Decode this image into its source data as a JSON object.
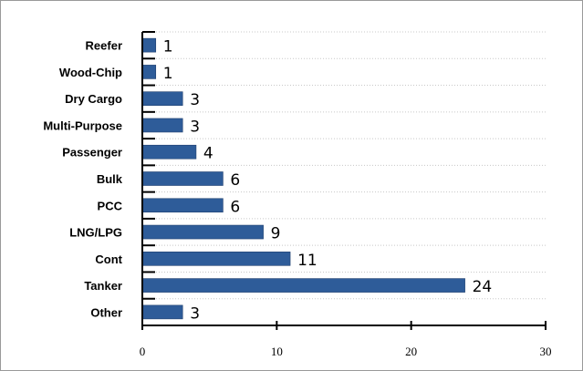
{
  "chart_data": {
    "type": "bar",
    "orientation": "horizontal",
    "categories": [
      "Reefer",
      "Wood-Chip",
      "Dry Cargo",
      "Multi-Purpose",
      "Passenger",
      "Bulk",
      "PCC",
      "LNG/LPG",
      "Cont",
      "Tanker",
      "Other"
    ],
    "values": [
      1,
      1,
      3,
      3,
      4,
      6,
      6,
      9,
      11,
      24,
      3
    ],
    "xlim": [
      0,
      30
    ],
    "xticks": [
      0,
      10,
      20,
      30
    ],
    "grid": true,
    "bar_color": "#2e5c99",
    "data_labels": true
  }
}
